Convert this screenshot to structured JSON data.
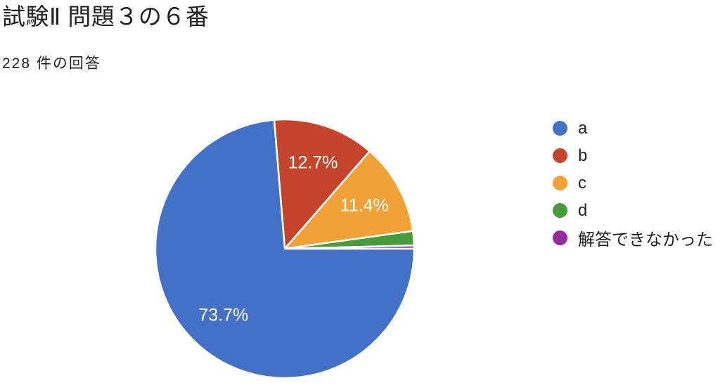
{
  "chart_data": {
    "type": "pie",
    "title": "試験Ⅱ 問題３の６番",
    "subtitle": "228 件の回答",
    "response_count": 228,
    "slices": [
      {
        "key": "a",
        "label": "a",
        "percent": 73.7,
        "data_label": "73.7%",
        "color": "#4471C8"
      },
      {
        "key": "b",
        "label": "b",
        "percent": 12.7,
        "data_label": "12.7%",
        "color": "#C5452C"
      },
      {
        "key": "c",
        "label": "c",
        "percent": 11.4,
        "data_label": "11.4%",
        "color": "#F0A236"
      },
      {
        "key": "d",
        "label": "d",
        "percent": 1.8,
        "data_label": "",
        "color": "#489B3C"
      },
      {
        "key": "no-answer",
        "label": "解答できなかった",
        "percent": 0.4,
        "data_label": "",
        "color": "#942D9B"
      }
    ],
    "layout": {
      "legend_position": "right",
      "start_angle_deg": -4.7,
      "direction": "clockwise",
      "draw_order": [
        1,
        2,
        3,
        4,
        0
      ],
      "label_radius_fraction": 0.7,
      "min_percent_for_label": 10,
      "slice_gap_color": "#ffffff",
      "background": "#ffffff",
      "text_color": "#202124",
      "data_label_color": "#ffffff"
    }
  }
}
